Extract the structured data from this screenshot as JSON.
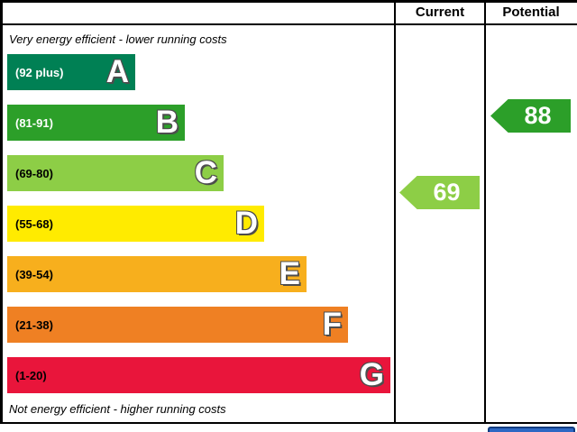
{
  "header": {
    "current": "Current",
    "potential": "Potential"
  },
  "captions": {
    "top": "Very energy efficient - lower running costs",
    "bottom": "Not energy efficient - higher running costs"
  },
  "bands": [
    {
      "letter": "A",
      "range": "(92 plus)",
      "color": "#008054",
      "label_color": "#ffffff"
    },
    {
      "letter": "B",
      "range": "(81-91)",
      "color": "#2c9f29",
      "label_color": "#ffffff"
    },
    {
      "letter": "C",
      "range": "(69-80)",
      "color": "#8dce46",
      "label_color": "#000000"
    },
    {
      "letter": "D",
      "range": "(55-68)",
      "color": "#ffeb00",
      "label_color": "#000000"
    },
    {
      "letter": "E",
      "range": "(39-54)",
      "color": "#f7af1d",
      "label_color": "#000000"
    },
    {
      "letter": "F",
      "range": "(21-38)",
      "color": "#ef8023",
      "label_color": "#000000"
    },
    {
      "letter": "G",
      "range": "(1-20)",
      "color": "#e9153b",
      "label_color": "#000000"
    }
  ],
  "ratings": {
    "current": {
      "value": "69",
      "band": "C",
      "color": "#8dce46",
      "shadow_color": "#cde6a5"
    },
    "potential": {
      "value": "88",
      "band": "B",
      "color": "#2c9f29",
      "shadow_color": "#a8d59a"
    }
  },
  "colors": {
    "border": "#000000",
    "partial_footer_fill": "#2d68c4",
    "partial_footer_border": "#123c80"
  },
  "chart_data": {
    "type": "bar",
    "categories": [
      "A",
      "B",
      "C",
      "D",
      "E",
      "F",
      "G"
    ],
    "band_score_ranges": [
      [
        92,
        100
      ],
      [
        81,
        91
      ],
      [
        69,
        80
      ],
      [
        55,
        68
      ],
      [
        39,
        54
      ],
      [
        21,
        38
      ],
      [
        1,
        20
      ]
    ],
    "band_colors": [
      "#008054",
      "#2c9f29",
      "#8dce46",
      "#ffeb00",
      "#f7af1d",
      "#ef8023",
      "#e9153b"
    ],
    "markers": [
      {
        "name": "Current",
        "value": 69,
        "band": "C"
      },
      {
        "name": "Potential",
        "value": 88,
        "band": "B"
      }
    ],
    "annotations": [
      "Very energy efficient - lower running costs",
      "Not energy efficient - higher running costs"
    ],
    "legend_position": "top-right-columns",
    "grid": false
  }
}
